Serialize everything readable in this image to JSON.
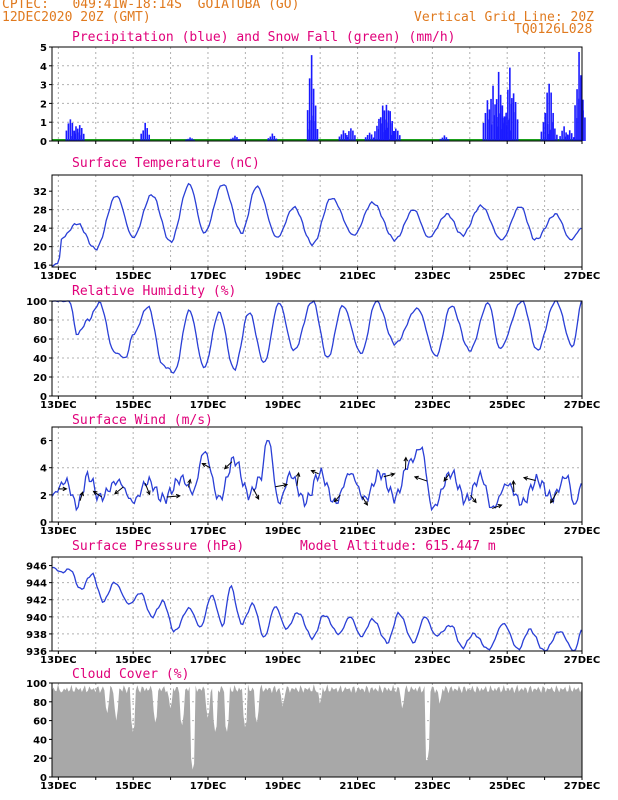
{
  "header": {
    "line1_left": "CPTEC:   049:41W-18:14S  GOIATUBA (GO)",
    "line2_left": "12DEC2020 20Z (GMT)",
    "line2_right": "Vertical Grid Line: 20Z",
    "line3_right": "TQ0126L028"
  },
  "x_ticks": [
    "13DEC",
    "15DEC",
    "17DEC",
    "19DEC",
    "21DEC",
    "23DEC",
    "25DEC",
    "27DEC"
  ],
  "colors": {
    "precip": "#1a1aff",
    "snow": "#1aa01a",
    "line": "#2a3fd6",
    "cloud": "#a8a8a8",
    "title": "#e0007a",
    "header": "#e07a1f",
    "grid": "#b0b0b0"
  },
  "chart_data": [
    {
      "type": "bar",
      "title": "Precipitation (blue) and Snow Fall (green) (mm/h)",
      "ylim": [
        0,
        5
      ],
      "yticks": [
        0,
        1,
        2,
        3,
        4,
        5
      ],
      "x_range_days": [
        12.83,
        27.0
      ],
      "series": [
        {
          "name": "Precipitation",
          "events": [
            [
              13.3,
              1.4
            ],
            [
              13.45,
              0.8
            ],
            [
              13.55,
              1.0
            ],
            [
              15.3,
              1.0
            ],
            [
              16.5,
              0.2
            ],
            [
              17.7,
              0.3
            ],
            [
              18.7,
              0.4
            ],
            [
              19.75,
              4.8
            ],
            [
              19.8,
              1.6
            ],
            [
              20.6,
              0.6
            ],
            [
              20.8,
              0.8
            ],
            [
              21.3,
              0.5
            ],
            [
              21.55,
              1.3
            ],
            [
              21.65,
              1.9
            ],
            [
              21.75,
              2.4
            ],
            [
              21.85,
              1.6
            ],
            [
              22.0,
              0.8
            ],
            [
              23.3,
              0.3
            ],
            [
              24.45,
              2.4
            ],
            [
              24.6,
              3.2
            ],
            [
              24.75,
              3.7
            ],
            [
              24.85,
              2.1
            ],
            [
              24.95,
              1.6
            ],
            [
              25.05,
              4.0
            ],
            [
              25.15,
              3.0
            ],
            [
              26.0,
              1.5
            ],
            [
              26.1,
              3.8
            ],
            [
              26.2,
              1.0
            ],
            [
              26.5,
              0.8
            ],
            [
              26.65,
              0.6
            ],
            [
              26.9,
              4.9
            ],
            [
              26.95,
              3.5
            ]
          ]
        }
      ]
    },
    {
      "type": "line",
      "title": "Surface Temperature (nC)",
      "ylim": [
        15.6,
        35.5
      ],
      "yticks": [
        16,
        20,
        24,
        28,
        32
      ],
      "series": [
        {
          "name": "",
          "amp": [
            [
              12.83,
              15.8
            ],
            [
              13.0,
              16.5
            ],
            [
              13.1,
              22
            ],
            [
              13.5,
              25
            ],
            [
              14.0,
              19.5
            ],
            [
              14.55,
              31
            ],
            [
              15.0,
              22
            ],
            [
              15.5,
              31.2
            ],
            [
              16.0,
              21.0
            ],
            [
              16.5,
              33.5
            ],
            [
              16.9,
              23.0
            ],
            [
              17.4,
              33.5
            ],
            [
              17.9,
              23.0
            ],
            [
              18.3,
              33.0
            ],
            [
              18.85,
              22.0
            ],
            [
              19.3,
              28.5
            ],
            [
              19.8,
              20.5
            ],
            [
              20.3,
              30.5
            ],
            [
              20.9,
              22.5
            ],
            [
              21.4,
              29.5
            ],
            [
              22.0,
              21.5
            ],
            [
              22.5,
              28.0
            ],
            [
              22.9,
              22.0
            ],
            [
              23.4,
              27.0
            ],
            [
              23.8,
              22.5
            ],
            [
              24.3,
              28.8
            ],
            [
              24.85,
              21.5
            ],
            [
              25.35,
              28.7
            ],
            [
              25.75,
              21.5
            ],
            [
              26.3,
              27.0
            ],
            [
              26.7,
              21.5
            ],
            [
              27.0,
              24.0
            ]
          ]
        }
      ]
    },
    {
      "type": "line",
      "title": "Relative Humidity (%)",
      "ylim": [
        0,
        100
      ],
      "yticks": [
        0,
        20,
        40,
        60,
        80,
        100
      ],
      "series": [
        {
          "name": "",
          "amp": [
            [
              12.83,
              100
            ],
            [
              13.3,
              100
            ],
            [
              13.5,
              65
            ],
            [
              13.8,
              80
            ],
            [
              14.1,
              98
            ],
            [
              14.5,
              46
            ],
            [
              14.8,
              40
            ],
            [
              15.0,
              65
            ],
            [
              15.4,
              94
            ],
            [
              15.8,
              32
            ],
            [
              16.1,
              25
            ],
            [
              16.5,
              90
            ],
            [
              16.9,
              30
            ],
            [
              17.3,
              88
            ],
            [
              17.7,
              28
            ],
            [
              18.1,
              88
            ],
            [
              18.5,
              35
            ],
            [
              18.9,
              98
            ],
            [
              19.3,
              48
            ],
            [
              19.8,
              100
            ],
            [
              20.2,
              40
            ],
            [
              20.6,
              95
            ],
            [
              21.1,
              45
            ],
            [
              21.5,
              100
            ],
            [
              22.0,
              55
            ],
            [
              22.6,
              92
            ],
            [
              23.1,
              42
            ],
            [
              23.5,
              95
            ],
            [
              24.0,
              48
            ],
            [
              24.5,
              98
            ],
            [
              24.8,
              50
            ],
            [
              25.4,
              100
            ],
            [
              25.8,
              48
            ],
            [
              26.3,
              100
            ],
            [
              26.75,
              52
            ],
            [
              27.0,
              100
            ]
          ]
        }
      ]
    },
    {
      "type": "line",
      "title": "Surface Wind (m/s)",
      "ylim": [
        0,
        7
      ],
      "yticks": [
        0,
        2,
        4,
        6
      ],
      "series": [
        {
          "name": "",
          "amp": [
            [
              12.83,
              2.0
            ],
            [
              13.2,
              3.0
            ],
            [
              13.5,
              1.2
            ],
            [
              13.8,
              3.4
            ],
            [
              14.1,
              1.8
            ],
            [
              14.6,
              3.0
            ],
            [
              15.0,
              1.5
            ],
            [
              15.4,
              3.0
            ],
            [
              15.8,
              1.7
            ],
            [
              16.3,
              3.2
            ],
            [
              16.6,
              2.2
            ],
            [
              16.9,
              5.2
            ],
            [
              17.3,
              1.7
            ],
            [
              17.7,
              4.6
            ],
            [
              18.1,
              2.0
            ],
            [
              18.4,
              3.2
            ],
            [
              18.6,
              6.2
            ],
            [
              18.9,
              1.4
            ],
            [
              19.2,
              3.5
            ],
            [
              19.6,
              1.5
            ],
            [
              20.0,
              3.6
            ],
            [
              20.4,
              1.4
            ],
            [
              20.8,
              3.6
            ],
            [
              21.2,
              1.7
            ],
            [
              21.6,
              3.6
            ],
            [
              22.0,
              1.8
            ],
            [
              22.4,
              4.4
            ],
            [
              22.7,
              5.5
            ],
            [
              23.0,
              1.0
            ],
            [
              23.5,
              3.6
            ],
            [
              23.9,
              1.6
            ],
            [
              24.3,
              3.4
            ],
            [
              24.6,
              1.0
            ],
            [
              25.0,
              2.8
            ],
            [
              25.4,
              1.4
            ],
            [
              25.8,
              3.1
            ],
            [
              26.2,
              1.8
            ],
            [
              26.6,
              3.4
            ],
            [
              26.8,
              1.2
            ],
            [
              27.0,
              2.8
            ]
          ]
        }
      ]
    },
    {
      "type": "line",
      "title": "Surface Pressure (hPa)",
      "annotation": "Model Altitude: 615.447 m",
      "ylim": [
        936,
        947
      ],
      "yticks": [
        936,
        938,
        940,
        942,
        944,
        946
      ],
      "series": [
        {
          "name": "",
          "amp": [
            [
              12.83,
              945.8
            ],
            [
              13.1,
              945.2
            ],
            [
              13.3,
              945.6
            ],
            [
              13.6,
              943.2
            ],
            [
              13.9,
              945.0
            ],
            [
              14.2,
              941.8
            ],
            [
              14.5,
              944.0
            ],
            [
              14.9,
              941.5
            ],
            [
              15.2,
              942.8
            ],
            [
              15.5,
              940.0
            ],
            [
              15.8,
              941.8
            ],
            [
              16.1,
              938.3
            ],
            [
              16.5,
              941.0
            ],
            [
              16.8,
              938.8
            ],
            [
              17.1,
              942.5
            ],
            [
              17.4,
              939.0
            ],
            [
              17.6,
              943.6
            ],
            [
              17.9,
              939.2
            ],
            [
              18.2,
              941.5
            ],
            [
              18.5,
              937.6
            ],
            [
              18.8,
              941.2
            ],
            [
              19.1,
              938.6
            ],
            [
              19.4,
              940.5
            ],
            [
              19.8,
              937.5
            ],
            [
              20.1,
              940.2
            ],
            [
              20.5,
              938.0
            ],
            [
              20.8,
              940.0
            ],
            [
              21.1,
              937.7
            ],
            [
              21.4,
              939.7
            ],
            [
              21.8,
              937.0
            ],
            [
              22.1,
              940.4
            ],
            [
              22.5,
              937.0
            ],
            [
              22.8,
              940.0
            ],
            [
              23.1,
              937.8
            ],
            [
              23.5,
              939.0
            ],
            [
              23.8,
              936.4
            ],
            [
              24.1,
              938.0
            ],
            [
              24.5,
              936.2
            ],
            [
              24.9,
              939.2
            ],
            [
              25.3,
              936.2
            ],
            [
              25.6,
              938.5
            ],
            [
              26.0,
              936.0
            ],
            [
              26.4,
              938.3
            ],
            [
              26.8,
              936.0
            ],
            [
              27.0,
              938.5
            ]
          ]
        }
      ]
    },
    {
      "type": "area",
      "title": "Cloud Cover (%)",
      "ylim": [
        0,
        100
      ],
      "yticks": [
        0,
        20,
        40,
        60,
        80,
        100
      ],
      "series": [
        {
          "name": "",
          "base": 96,
          "dips": [
            [
              13.1,
              88
            ],
            [
              14.3,
              65
            ],
            [
              14.55,
              60
            ],
            [
              15.0,
              45
            ],
            [
              15.6,
              55
            ],
            [
              16.0,
              70
            ],
            [
              16.3,
              52
            ],
            [
              16.6,
              5
            ],
            [
              17.0,
              60
            ],
            [
              17.2,
              45
            ],
            [
              17.5,
              45
            ],
            [
              18.0,
              50
            ],
            [
              18.3,
              55
            ],
            [
              19.0,
              72
            ],
            [
              20.0,
              75
            ],
            [
              22.2,
              70
            ],
            [
              22.85,
              12
            ],
            [
              23.2,
              75
            ]
          ]
        }
      ]
    }
  ]
}
